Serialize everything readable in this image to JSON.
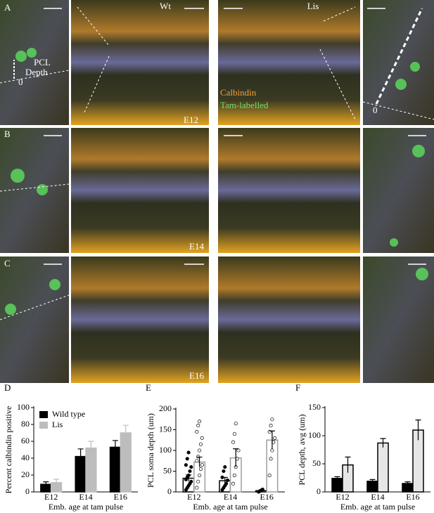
{
  "figure": {
    "panels": [
      {
        "label": "A",
        "stage": "E12"
      },
      {
        "label": "B",
        "stage": "E14"
      },
      {
        "label": "C",
        "stage": "E16"
      }
    ],
    "genotypes": [
      "Wt",
      "Lis"
    ],
    "annotations": {
      "pcl": "PCL",
      "depth": "Depth",
      "zero": "0",
      "calbindin": "Calbindin",
      "tam": "Tam-labelled"
    }
  },
  "chart_data": [
    {
      "type": "bar",
      "label": "D",
      "ylabel": "Percent calbindin positive",
      "xlabel": "Emb. age at tam pulse",
      "categories": [
        "E12",
        "E14",
        "E16"
      ],
      "ylim": [
        0,
        100
      ],
      "yticks": [
        0,
        20,
        40,
        60,
        80,
        100
      ],
      "legend": "upper left",
      "series": [
        {
          "name": "Wild type",
          "color": "#000000",
          "fill": "#000000",
          "values": [
            9,
            42,
            53
          ],
          "errors": [
            3,
            9,
            8
          ]
        },
        {
          "name": "Lis",
          "color": "#bdbdbd",
          "fill": "#bdbdbd",
          "values": [
            11,
            52,
            70
          ],
          "errors": [
            4,
            8,
            9
          ]
        }
      ]
    },
    {
      "type": "bar",
      "label": "E",
      "ylabel": "PCL soma depth (um)",
      "xlabel": "Emb. age at tam pulse",
      "categories": [
        "E12",
        "E14",
        "E16"
      ],
      "ylim": [
        0,
        200
      ],
      "yticks": [
        0,
        50,
        100,
        150,
        200
      ],
      "series": [
        {
          "color": "#000000",
          "fill": "#ffffff",
          "point_fill": "#000000",
          "values": [
            33,
            27,
            3
          ],
          "errors": [
            8,
            8,
            2
          ],
          "points": [
            [
              5,
              10,
              15,
              20,
              25,
              30,
              35,
              40,
              50,
              60,
              65,
              80,
              95
            ],
            [
              5,
              10,
              15,
              20,
              28,
              35,
              50,
              60
            ],
            [
              0,
              2,
              4,
              6
            ]
          ]
        },
        {
          "color": "#9e9e9e",
          "fill": "#ffffff",
          "point_fill": "#ffffff",
          "values": [
            72,
            82,
            125
          ],
          "errors": [
            12,
            22,
            22
          ],
          "points": [
            [
              10,
              25,
              40,
              55,
              65,
              75,
              85,
              100,
              115,
              130,
              145,
              160,
              170
            ],
            [
              20,
              40,
              60,
              80,
              100,
              120,
              140,
              165
            ],
            [
              40,
              80,
              100,
              120,
              130,
              145,
              160,
              175
            ]
          ]
        }
      ]
    },
    {
      "type": "bar",
      "label": "F",
      "ylabel": "PCL depth, avg (um)",
      "xlabel": "Emb. age at tam pulse",
      "categories": [
        "E12",
        "E14",
        "E16"
      ],
      "ylim": [
        0,
        150
      ],
      "yticks": [
        0,
        50,
        100,
        150
      ],
      "series": [
        {
          "color": "#000000",
          "fill": "#000000",
          "values": [
            24,
            19,
            15
          ],
          "errors": [
            3,
            3,
            3
          ]
        },
        {
          "color": "#000000",
          "fill": "#e6e6e6",
          "values": [
            48,
            87,
            110
          ],
          "errors": [
            14,
            8,
            18
          ]
        }
      ]
    }
  ]
}
